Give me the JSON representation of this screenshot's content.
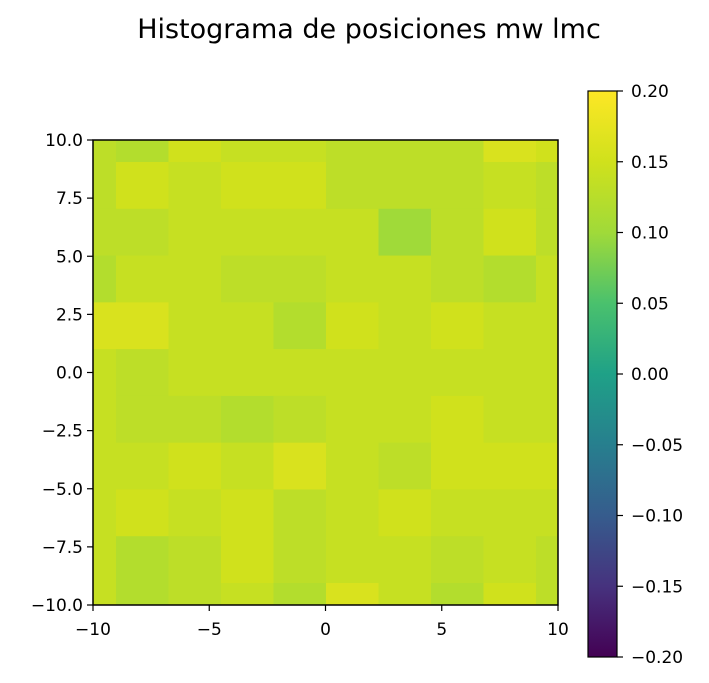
{
  "chart_data": {
    "type": "heatmap",
    "title": "Histograma de posiciones mw lmc",
    "xlabel": "",
    "ylabel": "",
    "xlim": [
      -10,
      10
    ],
    "ylim": [
      -10,
      10
    ],
    "x_ticks": [
      "−10",
      "−5",
      "0",
      "5",
      "10"
    ],
    "y_ticks": [
      "10.0",
      "7.5",
      "5.0",
      "2.5",
      "0.0",
      "−2.5",
      "−5.0",
      "−7.5",
      "−10.0"
    ],
    "colorbar": {
      "min": -0.2,
      "max": 0.2,
      "ticks": [
        "0.20",
        "0.15",
        "0.10",
        "0.05",
        "0.00",
        "−0.05",
        "−0.10",
        "−0.15",
        "−0.20"
      ],
      "colormap": "viridis"
    },
    "grid": false,
    "rows_top_to_bottom": [
      [
        0.13,
        0.12,
        0.15,
        0.14,
        0.14,
        0.13,
        0.13,
        0.13,
        0.16,
        0.15
      ],
      [
        0.13,
        0.15,
        0.14,
        0.15,
        0.15,
        0.13,
        0.13,
        0.13,
        0.14,
        0.13
      ],
      [
        0.13,
        0.13,
        0.14,
        0.14,
        0.14,
        0.14,
        0.1,
        0.13,
        0.15,
        0.13
      ],
      [
        0.12,
        0.14,
        0.14,
        0.13,
        0.13,
        0.14,
        0.14,
        0.13,
        0.12,
        0.14
      ],
      [
        0.16,
        0.16,
        0.14,
        0.14,
        0.12,
        0.15,
        0.14,
        0.15,
        0.14,
        0.14
      ],
      [
        0.14,
        0.13,
        0.14,
        0.14,
        0.14,
        0.14,
        0.14,
        0.14,
        0.14,
        0.14
      ],
      [
        0.14,
        0.13,
        0.13,
        0.12,
        0.13,
        0.14,
        0.14,
        0.15,
        0.14,
        0.14
      ],
      [
        0.14,
        0.14,
        0.15,
        0.14,
        0.16,
        0.14,
        0.13,
        0.15,
        0.15,
        0.15
      ],
      [
        0.14,
        0.15,
        0.14,
        0.15,
        0.13,
        0.14,
        0.15,
        0.14,
        0.14,
        0.14
      ],
      [
        0.14,
        0.12,
        0.13,
        0.15,
        0.13,
        0.14,
        0.14,
        0.13,
        0.14,
        0.13
      ],
      [
        0.14,
        0.12,
        0.13,
        0.14,
        0.12,
        0.16,
        0.14,
        0.12,
        0.15,
        0.13
      ]
    ]
  }
}
